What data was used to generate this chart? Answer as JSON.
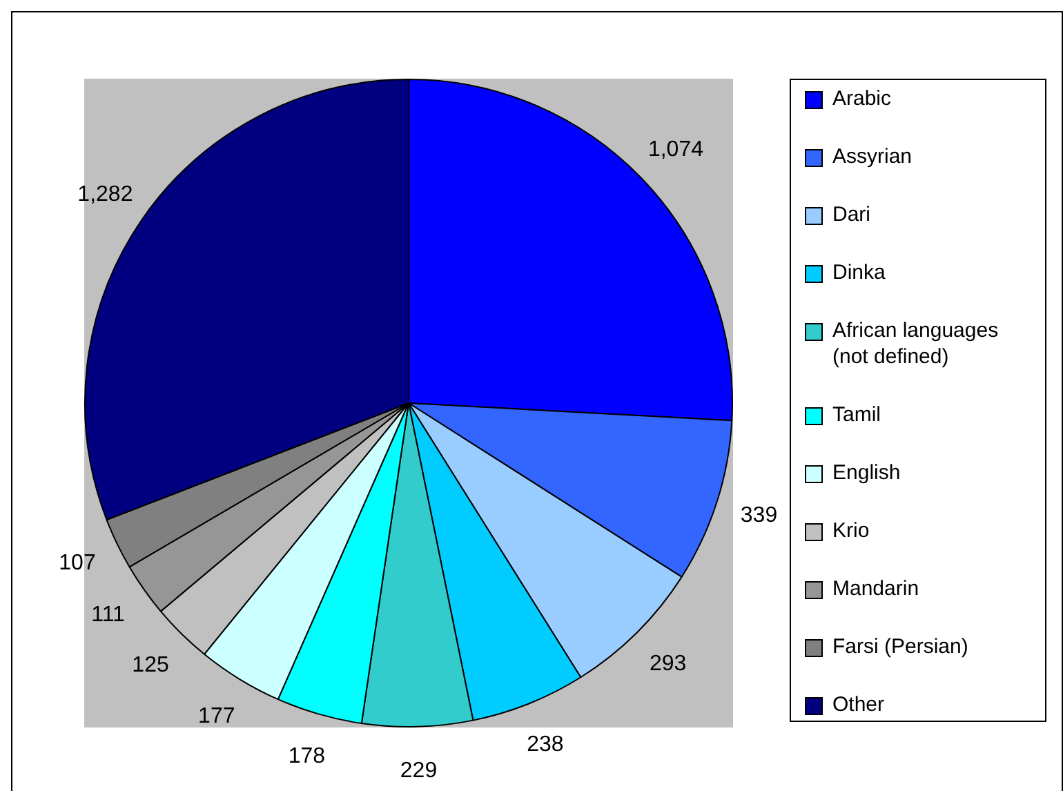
{
  "chart_data": {
    "type": "pie",
    "categories": [
      "Arabic",
      "Assyrian",
      "Dari",
      "Dinka",
      "African languages (not defined)",
      "Tamil",
      "English",
      "Krio",
      "Mandarin",
      "Farsi (Persian)",
      "Other"
    ],
    "values": [
      1074,
      339,
      293,
      238,
      229,
      178,
      177,
      125,
      111,
      107,
      1282
    ],
    "colors": [
      "#0000ff",
      "#3366ff",
      "#99ccff",
      "#00ccff",
      "#33cccc",
      "#00ffff",
      "#ccffff",
      "#c0c0c0",
      "#969696",
      "#808080",
      "#000080"
    ],
    "value_labels": [
      "1,074",
      "339",
      "293",
      "238",
      "229",
      "178",
      "177",
      "125",
      "111",
      "107",
      "1,282"
    ],
    "legend": "right"
  }
}
